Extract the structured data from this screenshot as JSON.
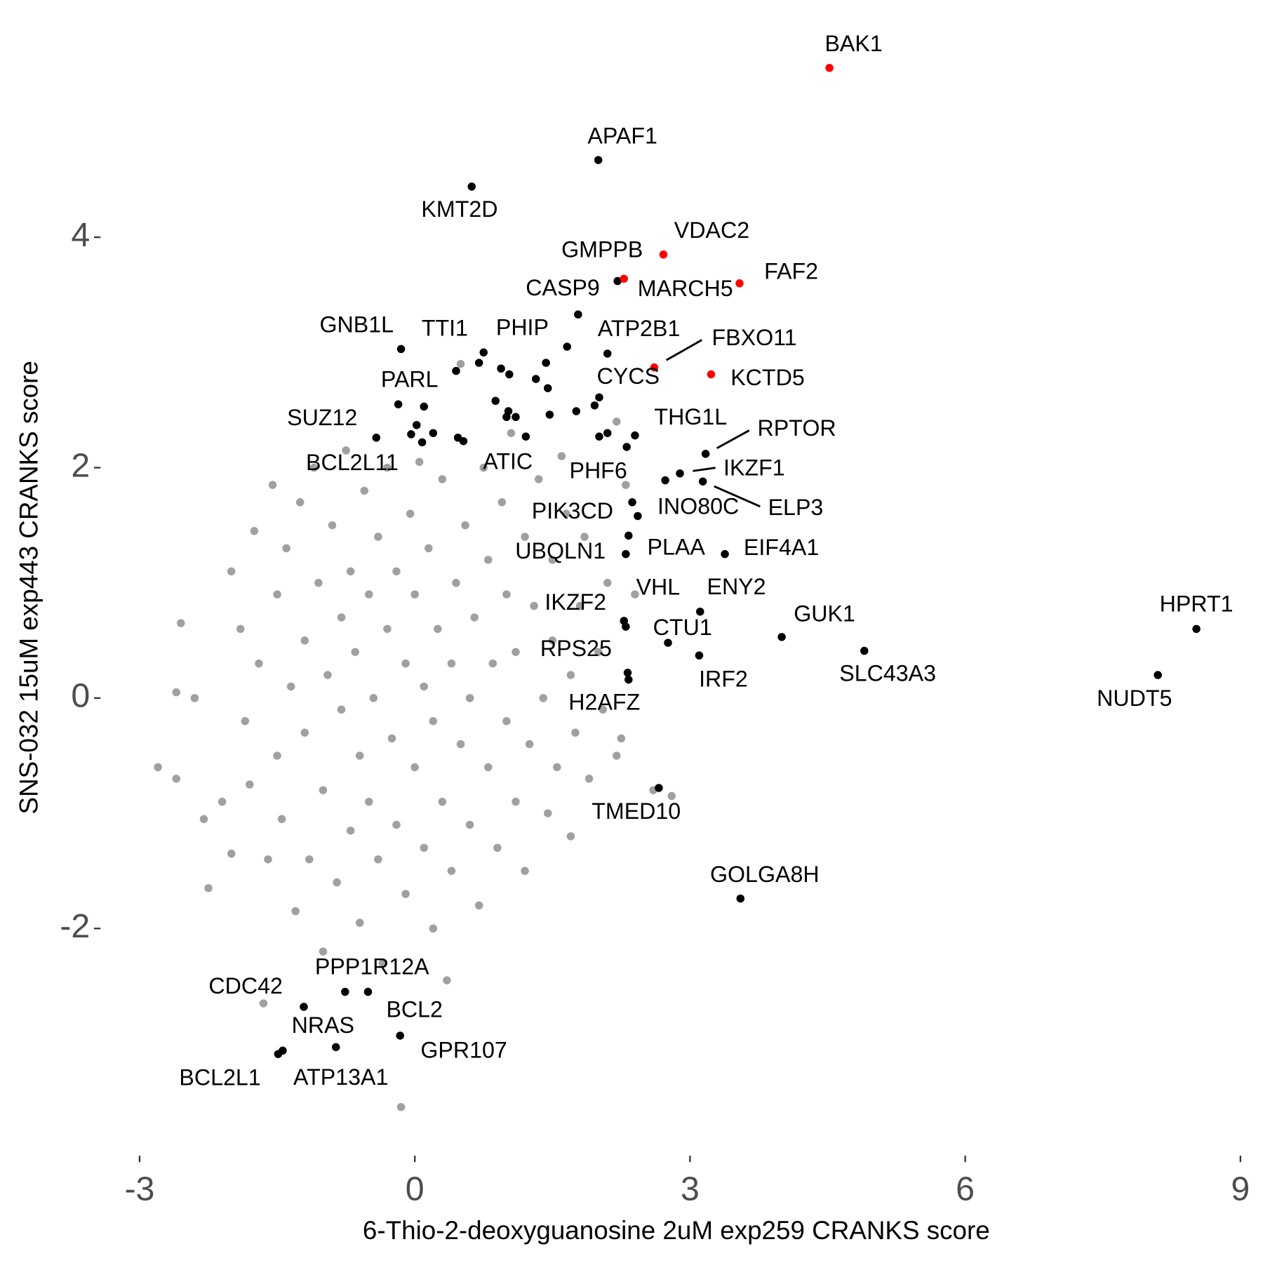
{
  "chart_data": {
    "type": "scatter",
    "x_label": "6-Thio-2-deoxyguanosine 2uM exp259 CRANKS score",
    "y_label": "SNS-032 15uM exp443 CRANKS score",
    "xlim": [
      -3.4,
      9.1
    ],
    "ylim": [
      -4.0,
      5.7
    ],
    "xticks": [
      -3,
      0,
      3,
      6,
      9
    ],
    "yticks": [
      -2,
      0,
      2,
      4
    ],
    "series": [
      {
        "color": "#a0a0a0",
        "x": [
          -2.8,
          -2.6,
          -2.4,
          -2.6,
          -2.55,
          -2.3,
          -2.25,
          -2.1,
          -2.0,
          -2.0,
          -1.9,
          -1.85,
          -1.8,
          -1.75,
          -1.7,
          -1.65,
          -1.6,
          -1.55,
          -1.5,
          -1.5,
          -1.45,
          -1.4,
          -1.35,
          -1.3,
          -1.25,
          -1.2,
          -1.2,
          -1.15,
          -1.1,
          -1.05,
          -1.0,
          -1.0,
          -0.95,
          -0.9,
          -0.85,
          -0.8,
          -0.8,
          -0.75,
          -0.7,
          -0.7,
          -0.65,
          -0.6,
          -0.6,
          -0.55,
          -0.5,
          -0.5,
          -0.45,
          -0.4,
          -0.4,
          -0.35,
          -0.3,
          -0.3,
          -0.25,
          -0.2,
          -0.2,
          -0.15,
          -0.1,
          -0.1,
          -0.05,
          0.0,
          0.0,
          0.05,
          0.1,
          0.1,
          0.15,
          0.2,
          0.2,
          0.25,
          0.3,
          0.3,
          0.35,
          0.4,
          0.4,
          0.45,
          0.5,
          0.5,
          0.55,
          0.6,
          0.6,
          0.65,
          0.7,
          0.75,
          0.8,
          0.8,
          0.85,
          0.9,
          0.95,
          1.0,
          1.0,
          1.05,
          1.1,
          1.1,
          1.2,
          1.2,
          1.25,
          1.3,
          1.35,
          1.4,
          1.45,
          1.5,
          1.5,
          1.55,
          1.6,
          1.65,
          1.7,
          1.7,
          1.75,
          1.8,
          1.85,
          1.9,
          2.0,
          2.05,
          2.1,
          2.2,
          2.2,
          2.25,
          2.3,
          2.4,
          2.6,
          2.8
        ],
        "y": [
          -0.6,
          0.05,
          0.0,
          -0.7,
          0.65,
          -1.05,
          -1.65,
          -0.9,
          1.1,
          -1.35,
          0.6,
          -0.2,
          -0.75,
          1.45,
          0.3,
          -2.65,
          -1.4,
          1.85,
          0.9,
          -0.5,
          -1.05,
          1.3,
          0.1,
          -1.85,
          1.7,
          0.5,
          -0.3,
          -1.4,
          2.0,
          1.0,
          -0.8,
          -2.2,
          0.2,
          1.5,
          -1.6,
          0.7,
          -0.1,
          2.15,
          -1.15,
          1.1,
          0.4,
          -0.5,
          -1.95,
          1.8,
          0.9,
          -0.9,
          0.0,
          1.4,
          -1.4,
          -2.3,
          2.0,
          0.6,
          -0.35,
          1.1,
          -1.1,
          -3.55,
          0.3,
          -1.7,
          1.6,
          -0.6,
          0.9,
          2.05,
          -1.3,
          0.1,
          1.3,
          -0.2,
          -2.0,
          0.6,
          1.9,
          -0.9,
          -2.45,
          0.3,
          -1.5,
          1.0,
          -0.4,
          2.9,
          1.5,
          -1.1,
          0.0,
          0.7,
          -1.8,
          2.0,
          -0.6,
          1.2,
          0.3,
          -1.3,
          1.7,
          -0.2,
          0.9,
          2.3,
          -0.9,
          0.4,
          1.4,
          -1.5,
          -0.4,
          0.8,
          1.9,
          0.0,
          -1.0,
          1.2,
          0.5,
          -0.6,
          2.1,
          1.6,
          0.2,
          -1.2,
          -0.3,
          0.8,
          1.4,
          -0.7,
          0.4,
          -0.1,
          1.0,
          -0.5,
          2.4,
          -0.35,
          1.85,
          0.9,
          -0.8,
          -0.85
        ]
      },
      {
        "color": "#000000",
        "x": [
          2.0,
          0.62,
          2.21,
          1.78,
          -0.15,
          0.45,
          0.75,
          2.1,
          2.01,
          -0.18,
          -0.42,
          2.4,
          3.17,
          -0.04,
          0.53,
          2.73,
          2.89,
          3.14,
          2.37,
          2.43,
          2.3,
          2.33,
          3.38,
          3.11,
          2.3,
          2.28,
          2.76,
          4.0,
          4.9,
          8.52,
          8.1,
          3.1,
          2.32,
          2.33,
          2.66,
          3.55,
          -0.51,
          -1.21,
          -0.76,
          -0.86,
          -0.16,
          -1.49,
          -1.44,
          0.7,
          0.94,
          1.03,
          1.32,
          1.43,
          1.45,
          1.66,
          0.88,
          0.1,
          0.02,
          0.2,
          0.08,
          0.47,
          1.02,
          1.1,
          1.0,
          1.21,
          1.47,
          1.76,
          1.96,
          2.01,
          2.1,
          2.31
        ],
        "y": [
          4.67,
          4.44,
          3.62,
          3.33,
          3.03,
          2.84,
          3.0,
          2.99,
          2.61,
          2.55,
          2.26,
          2.28,
          2.12,
          2.29,
          2.23,
          1.89,
          1.95,
          1.88,
          1.7,
          1.58,
          1.25,
          1.41,
          1.25,
          0.75,
          0.62,
          0.67,
          0.48,
          0.53,
          0.41,
          0.6,
          0.2,
          0.37,
          0.22,
          0.16,
          -0.78,
          -1.74,
          -2.55,
          -2.68,
          -2.55,
          -3.03,
          -2.93,
          -3.09,
          -3.06,
          2.91,
          2.86,
          2.81,
          2.77,
          2.91,
          2.69,
          3.05,
          2.58,
          2.53,
          2.37,
          2.3,
          2.22,
          2.26,
          2.49,
          2.44,
          2.44,
          2.27,
          2.46,
          2.49,
          2.54,
          2.27,
          2.3,
          2.18
        ],
        "labels": [
          "APAF1",
          "KMT2D",
          "GMPPB",
          "CASP9",
          "GNB1L",
          "TTI1",
          "PHIP",
          "ATP2B1",
          "CYCS",
          "PARL",
          "SUZ12",
          "THG1L",
          "RPTOR",
          "BCL2L11",
          "ATIC",
          "PHF6",
          "IKZF1",
          "ELP3",
          "PIK3CD",
          "INO80C",
          "UBQLN1",
          "PLAA",
          "EIF4A1",
          "ENY2",
          "VHL",
          "IKZF2",
          "CTU1",
          "GUK1",
          "SLC43A3",
          "HPRT1",
          "NUDT5",
          "IRF2",
          "RPS25",
          "H2AFZ",
          "TMED10",
          "GOLGA8H",
          "PPP1R12A",
          "CDC42",
          "BCL2",
          "NRAS",
          "GPR107",
          "BCL2L1",
          "ATP13A1",
          null,
          null,
          null,
          null,
          null,
          null,
          null,
          null,
          null,
          null,
          null,
          null,
          null,
          null,
          null,
          null,
          null,
          null,
          null,
          null,
          null,
          null,
          null
        ]
      },
      {
        "color": "#ff0000",
        "x": [
          4.52,
          2.71,
          2.28,
          3.54,
          2.61,
          3.23
        ],
        "y": [
          5.47,
          3.85,
          3.64,
          3.6,
          2.87,
          2.81
        ],
        "labels": [
          "BAK1",
          "VDAC2",
          "MARCH5",
          "FAF2",
          "FBXO11",
          "KCTD5"
        ]
      }
    ]
  }
}
